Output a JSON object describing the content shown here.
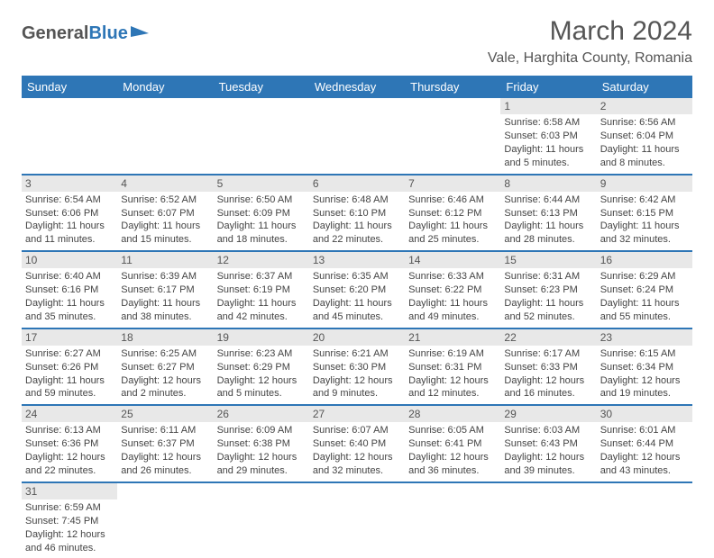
{
  "header": {
    "logo_text1": "General",
    "logo_text2": "Blue",
    "month_title": "March 2024",
    "location": "Vale, Harghita County, Romania"
  },
  "colors": {
    "header_bg": "#2e76b6",
    "header_text": "#ffffff",
    "daynum_bg": "#e8e8e8",
    "border": "#2e76b6",
    "text": "#444444",
    "title_text": "#555555"
  },
  "day_labels": [
    "Sunday",
    "Monday",
    "Tuesday",
    "Wednesday",
    "Thursday",
    "Friday",
    "Saturday"
  ],
  "weeks": [
    [
      null,
      null,
      null,
      null,
      null,
      {
        "n": "1",
        "sr": "Sunrise: 6:58 AM",
        "ss": "Sunset: 6:03 PM",
        "d1": "Daylight: 11 hours",
        "d2": "and 5 minutes."
      },
      {
        "n": "2",
        "sr": "Sunrise: 6:56 AM",
        "ss": "Sunset: 6:04 PM",
        "d1": "Daylight: 11 hours",
        "d2": "and 8 minutes."
      }
    ],
    [
      {
        "n": "3",
        "sr": "Sunrise: 6:54 AM",
        "ss": "Sunset: 6:06 PM",
        "d1": "Daylight: 11 hours",
        "d2": "and 11 minutes."
      },
      {
        "n": "4",
        "sr": "Sunrise: 6:52 AM",
        "ss": "Sunset: 6:07 PM",
        "d1": "Daylight: 11 hours",
        "d2": "and 15 minutes."
      },
      {
        "n": "5",
        "sr": "Sunrise: 6:50 AM",
        "ss": "Sunset: 6:09 PM",
        "d1": "Daylight: 11 hours",
        "d2": "and 18 minutes."
      },
      {
        "n": "6",
        "sr": "Sunrise: 6:48 AM",
        "ss": "Sunset: 6:10 PM",
        "d1": "Daylight: 11 hours",
        "d2": "and 22 minutes."
      },
      {
        "n": "7",
        "sr": "Sunrise: 6:46 AM",
        "ss": "Sunset: 6:12 PM",
        "d1": "Daylight: 11 hours",
        "d2": "and 25 minutes."
      },
      {
        "n": "8",
        "sr": "Sunrise: 6:44 AM",
        "ss": "Sunset: 6:13 PM",
        "d1": "Daylight: 11 hours",
        "d2": "and 28 minutes."
      },
      {
        "n": "9",
        "sr": "Sunrise: 6:42 AM",
        "ss": "Sunset: 6:15 PM",
        "d1": "Daylight: 11 hours",
        "d2": "and 32 minutes."
      }
    ],
    [
      {
        "n": "10",
        "sr": "Sunrise: 6:40 AM",
        "ss": "Sunset: 6:16 PM",
        "d1": "Daylight: 11 hours",
        "d2": "and 35 minutes."
      },
      {
        "n": "11",
        "sr": "Sunrise: 6:39 AM",
        "ss": "Sunset: 6:17 PM",
        "d1": "Daylight: 11 hours",
        "d2": "and 38 minutes."
      },
      {
        "n": "12",
        "sr": "Sunrise: 6:37 AM",
        "ss": "Sunset: 6:19 PM",
        "d1": "Daylight: 11 hours",
        "d2": "and 42 minutes."
      },
      {
        "n": "13",
        "sr": "Sunrise: 6:35 AM",
        "ss": "Sunset: 6:20 PM",
        "d1": "Daylight: 11 hours",
        "d2": "and 45 minutes."
      },
      {
        "n": "14",
        "sr": "Sunrise: 6:33 AM",
        "ss": "Sunset: 6:22 PM",
        "d1": "Daylight: 11 hours",
        "d2": "and 49 minutes."
      },
      {
        "n": "15",
        "sr": "Sunrise: 6:31 AM",
        "ss": "Sunset: 6:23 PM",
        "d1": "Daylight: 11 hours",
        "d2": "and 52 minutes."
      },
      {
        "n": "16",
        "sr": "Sunrise: 6:29 AM",
        "ss": "Sunset: 6:24 PM",
        "d1": "Daylight: 11 hours",
        "d2": "and 55 minutes."
      }
    ],
    [
      {
        "n": "17",
        "sr": "Sunrise: 6:27 AM",
        "ss": "Sunset: 6:26 PM",
        "d1": "Daylight: 11 hours",
        "d2": "and 59 minutes."
      },
      {
        "n": "18",
        "sr": "Sunrise: 6:25 AM",
        "ss": "Sunset: 6:27 PM",
        "d1": "Daylight: 12 hours",
        "d2": "and 2 minutes."
      },
      {
        "n": "19",
        "sr": "Sunrise: 6:23 AM",
        "ss": "Sunset: 6:29 PM",
        "d1": "Daylight: 12 hours",
        "d2": "and 5 minutes."
      },
      {
        "n": "20",
        "sr": "Sunrise: 6:21 AM",
        "ss": "Sunset: 6:30 PM",
        "d1": "Daylight: 12 hours",
        "d2": "and 9 minutes."
      },
      {
        "n": "21",
        "sr": "Sunrise: 6:19 AM",
        "ss": "Sunset: 6:31 PM",
        "d1": "Daylight: 12 hours",
        "d2": "and 12 minutes."
      },
      {
        "n": "22",
        "sr": "Sunrise: 6:17 AM",
        "ss": "Sunset: 6:33 PM",
        "d1": "Daylight: 12 hours",
        "d2": "and 16 minutes."
      },
      {
        "n": "23",
        "sr": "Sunrise: 6:15 AM",
        "ss": "Sunset: 6:34 PM",
        "d1": "Daylight: 12 hours",
        "d2": "and 19 minutes."
      }
    ],
    [
      {
        "n": "24",
        "sr": "Sunrise: 6:13 AM",
        "ss": "Sunset: 6:36 PM",
        "d1": "Daylight: 12 hours",
        "d2": "and 22 minutes."
      },
      {
        "n": "25",
        "sr": "Sunrise: 6:11 AM",
        "ss": "Sunset: 6:37 PM",
        "d1": "Daylight: 12 hours",
        "d2": "and 26 minutes."
      },
      {
        "n": "26",
        "sr": "Sunrise: 6:09 AM",
        "ss": "Sunset: 6:38 PM",
        "d1": "Daylight: 12 hours",
        "d2": "and 29 minutes."
      },
      {
        "n": "27",
        "sr": "Sunrise: 6:07 AM",
        "ss": "Sunset: 6:40 PM",
        "d1": "Daylight: 12 hours",
        "d2": "and 32 minutes."
      },
      {
        "n": "28",
        "sr": "Sunrise: 6:05 AM",
        "ss": "Sunset: 6:41 PM",
        "d1": "Daylight: 12 hours",
        "d2": "and 36 minutes."
      },
      {
        "n": "29",
        "sr": "Sunrise: 6:03 AM",
        "ss": "Sunset: 6:43 PM",
        "d1": "Daylight: 12 hours",
        "d2": "and 39 minutes."
      },
      {
        "n": "30",
        "sr": "Sunrise: 6:01 AM",
        "ss": "Sunset: 6:44 PM",
        "d1": "Daylight: 12 hours",
        "d2": "and 43 minutes."
      }
    ],
    [
      {
        "n": "31",
        "sr": "Sunrise: 6:59 AM",
        "ss": "Sunset: 7:45 PM",
        "d1": "Daylight: 12 hours",
        "d2": "and 46 minutes."
      },
      null,
      null,
      null,
      null,
      null,
      null
    ]
  ]
}
